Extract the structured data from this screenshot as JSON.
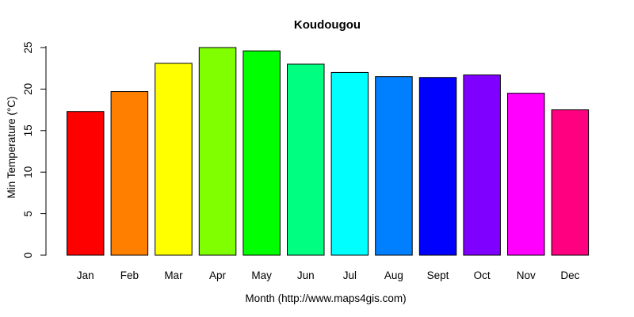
{
  "page": {
    "background_color": "#ffffff",
    "text_color": "#000000"
  },
  "chart_data": {
    "type": "bar",
    "title": "Koudougou",
    "xlabel": "Month (http://www.maps4gis.com)",
    "ylabel": "Min Temperature (°C)",
    "categories": [
      "Jan",
      "Feb",
      "Mar",
      "Apr",
      "May",
      "Jun",
      "Jul",
      "Aug",
      "Sept",
      "Oct",
      "Nov",
      "Dec"
    ],
    "values": [
      17.3,
      19.7,
      23.1,
      25.0,
      24.6,
      23.0,
      22.0,
      21.5,
      21.4,
      21.7,
      19.5,
      17.5
    ],
    "bar_colors": [
      "#FF0000",
      "#FF8000",
      "#FFFF00",
      "#80FF00",
      "#00FF00",
      "#00FF80",
      "#00FFFF",
      "#0080FF",
      "#0000FF",
      "#8000FF",
      "#FF00FF",
      "#FF0080"
    ],
    "bar_border_color": "#000000",
    "axis_color": "#000000",
    "ylim": [
      0,
      25
    ],
    "yticks": [
      0,
      5,
      10,
      15,
      20,
      25
    ],
    "grid": false,
    "legend_position": "none"
  }
}
